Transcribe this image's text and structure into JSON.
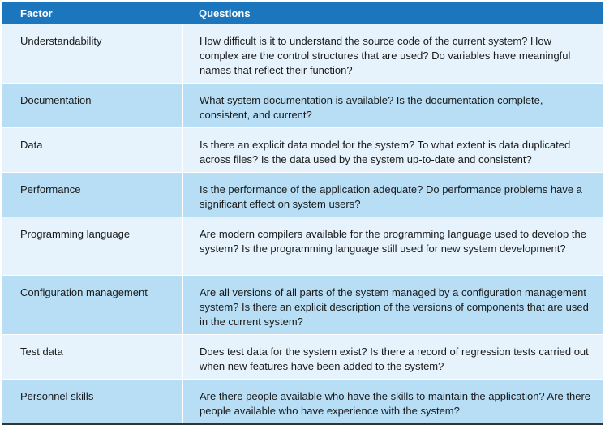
{
  "table": {
    "headers": {
      "factor": "Factor",
      "questions": "Questions"
    },
    "rows": [
      {
        "factor": "Understandability",
        "questions": "How difficult is it to understand the source code of the current system? How complex are the control structures that are used? Do variables have meaningful names that reflect their function?"
      },
      {
        "factor": "Documentation",
        "questions": "What system documentation is available? Is the documentation complete, consistent, and current?"
      },
      {
        "factor": "Data",
        "questions": "Is there an explicit data model for the system? To what extent is data duplicated across files? Is the data used by the system up-to-date and consistent?"
      },
      {
        "factor": "Performance",
        "questions": "Is the performance of the application adequate? Do performance problems have a significant effect on system users?"
      },
      {
        "factor": "Programming language",
        "questions": "Are modern compilers available for the programming language used to develop the system? Is the programming language still used for new system development?"
      },
      {
        "factor": "Configuration management",
        "questions": "Are all versions of all parts of the system managed by a configuration management system? Is there an explicit description of the versions of components that are used in the current system?"
      },
      {
        "factor": "Test data",
        "questions": "Does test data for the system exist? Is there a record of regression tests carried out when new features have been added to the system?"
      },
      {
        "factor": "Personnel skills",
        "questions": "Are there people available who have the skills to maintain the application? Are there people available who have experience with the system?"
      }
    ]
  },
  "colors": {
    "header_bg": "#1b76bd",
    "row_light": "#e6f3fc",
    "row_dark": "#b7def5"
  }
}
